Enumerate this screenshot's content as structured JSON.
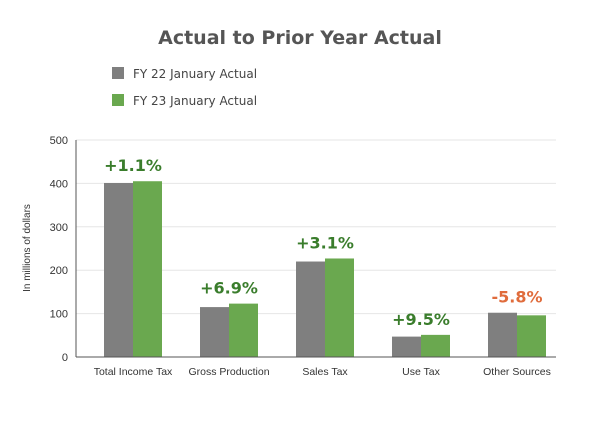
{
  "chart_data": {
    "type": "bar",
    "title": "Actual to Prior Year Actual",
    "ylabel": "In millions of dollars",
    "xlabel": "",
    "ylim": [
      0,
      500
    ],
    "yticks": [
      "0",
      "100",
      "200",
      "300",
      "400",
      "500"
    ],
    "grid": true,
    "legend_position": "top-left",
    "categories": [
      "Total Income Tax",
      "Gross Production",
      "Sales Tax",
      "Use Tax",
      "Other Sources"
    ],
    "series": [
      {
        "name": "FY 22 January Actual",
        "color": "#7f7f7f",
        "values": [
          401,
          115,
          220,
          47,
          102
        ]
      },
      {
        "name": "FY 23 January Actual",
        "color": "#6aa84f",
        "values": [
          405,
          123,
          227,
          51,
          96
        ]
      }
    ],
    "annotations": [
      {
        "text": "+1.1%",
        "color": "#3a7d2c"
      },
      {
        "text": "+6.9%",
        "color": "#3a7d2c"
      },
      {
        "text": "+3.1%",
        "color": "#3a7d2c"
      },
      {
        "text": "+9.5%",
        "color": "#3a7d2c"
      },
      {
        "text": "-5.8%",
        "color": "#e06c3c"
      }
    ]
  }
}
